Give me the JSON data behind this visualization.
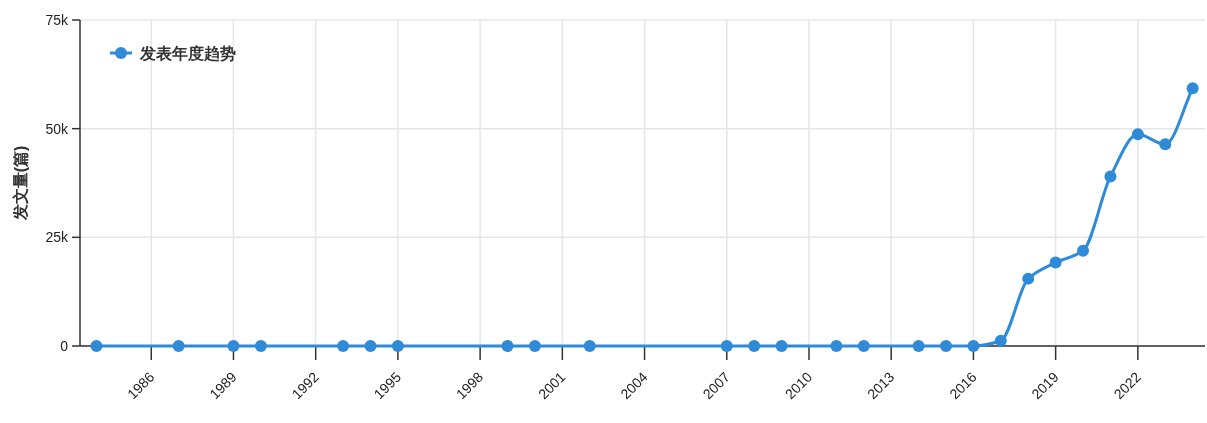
{
  "chart_data": {
    "type": "line",
    "ylabel": "发文量(篇)",
    "x": [
      1984,
      1987,
      1989,
      1990,
      1993,
      1994,
      1995,
      1999,
      2000,
      2002,
      2007,
      2008,
      2009,
      2011,
      2012,
      2014,
      2015,
      2016,
      2017,
      2018,
      2019,
      2020,
      2021,
      2022,
      2023,
      2024
    ],
    "series": [
      {
        "name": "发表年度趋势",
        "color": "#2f8ad8",
        "values": [
          0,
          0,
          0,
          0,
          0,
          0,
          0,
          0,
          0,
          0,
          0,
          0,
          0,
          0,
          0,
          0,
          0,
          0,
          1200,
          15500,
          19200,
          21900,
          39000,
          48700,
          46400,
          59300
        ]
      }
    ],
    "xlim": [
      1983.4,
      2024.45
    ],
    "xticks": [
      1986,
      1989,
      1992,
      1995,
      1998,
      2001,
      2004,
      2007,
      2010,
      2013,
      2016,
      2019,
      2022
    ],
    "ylim": [
      0,
      75000
    ],
    "yticks": [
      {
        "value": 0,
        "label": "0"
      },
      {
        "value": 25000,
        "label": "25k"
      },
      {
        "value": 50000,
        "label": "50k"
      },
      {
        "value": 75000,
        "label": "75k"
      }
    ],
    "grid": true,
    "legend": "top left",
    "marker": "circle",
    "line_style": "solid"
  }
}
